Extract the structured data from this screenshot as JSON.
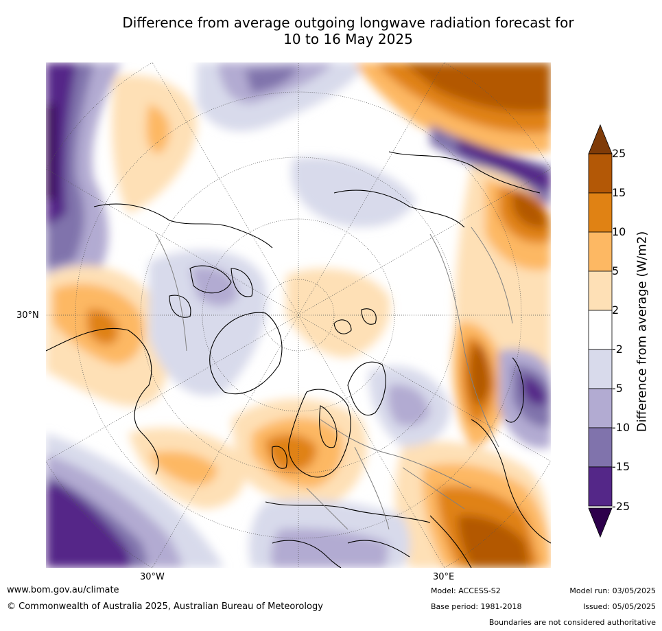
{
  "title": {
    "line1": "Difference from average outgoing longwave radiation forecast for",
    "line2": "10 to 16 May 2025"
  },
  "map": {
    "projection": "north-polar-stereographic",
    "labels": {
      "lat_30n": "30°N",
      "lon_30w": "30°W",
      "lon_30e": "30°E"
    }
  },
  "colorbar": {
    "label": "Difference from average (W/m2)",
    "ticks": [
      "25",
      "15",
      "10",
      "5",
      "2",
      "-2",
      "-5",
      "-10",
      "-15",
      "-25"
    ],
    "colors": {
      "above_25": "#7f3b08",
      "15_to_25": "#b35806",
      "10_to_15": "#e08214",
      "5_to_10": "#fdb863",
      "2_to_5": "#fee0b6",
      "neutral": "#ffffff",
      "minus2_to_minus5": "#d8daeb",
      "minus5_to_minus10": "#b2abd2",
      "minus10_to_minus15": "#8073ac",
      "minus15_to_minus25": "#542788",
      "below_minus25": "#2d004b"
    }
  },
  "footer": {
    "website": "www.bom.gov.au/climate",
    "copyright": "© Commonwealth of Australia 2025, Australian Bureau of Meteorology",
    "model": "Model: ACCESS-S2",
    "base_period": "Base period: 1981-2018",
    "model_run": "Model run: 03/05/2025",
    "issued": "Issued: 05/05/2025",
    "disclaimer": "Boundaries are not considered authoritative"
  }
}
